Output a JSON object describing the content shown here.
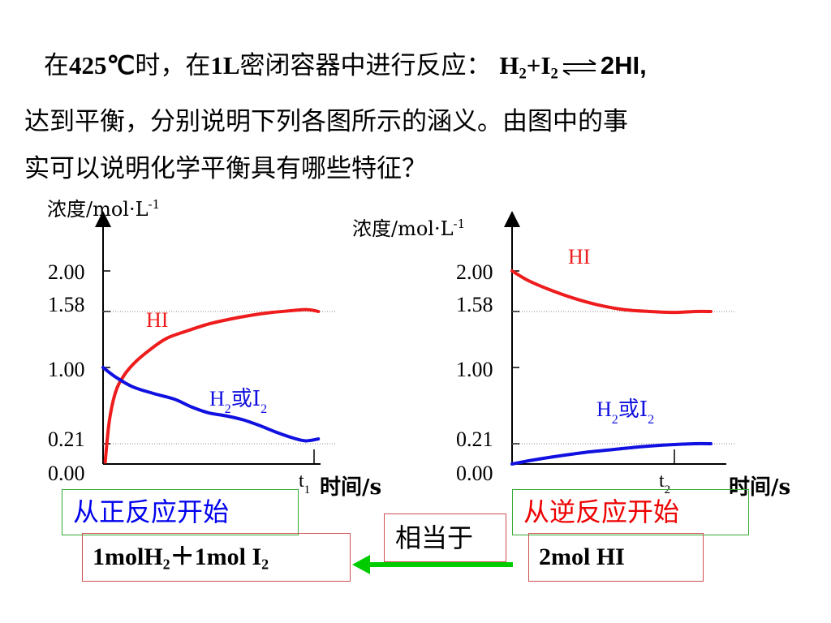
{
  "question": {
    "line1_pre": "在",
    "temp": "425℃",
    "line1_mid": "时，在",
    "vol": "1L",
    "line1_post": "密闭容器中进行反应：",
    "eq_lhs_h": "H",
    "eq_lhs_sub1": "2",
    "eq_lhs_plus_i": "+I",
    "eq_lhs_sub2": "2",
    "eq_rhs": "2HI,",
    "line2": "达到平衡，分别说明下列各图所示的涵义。由图中的事",
    "line3": "实可以说明化学平衡具有哪些特征？"
  },
  "axis_text": {
    "ylabel_main": "浓度/mol·L",
    "ylabel_sup": "-1",
    "xlabel": "时间/s",
    "t1_main": "t",
    "t1_sub": "1",
    "t2_main": "t",
    "t2_sub": "2",
    "hi_label": "HI",
    "h2_main": "H",
    "h2_sub": "2",
    "h2_or": "或I",
    "h2_sub2": "2"
  },
  "colors": {
    "hi": "#ee1c1c",
    "h2_i2": "#1010e0",
    "green_box": "#33aa33",
    "red_box": "#d05050",
    "arrow": "#00cc00"
  },
  "chart_data": [
    {
      "type": "line",
      "title": "从正反应开始",
      "xlabel": "时间/s",
      "ylabel": "浓度/mol·L-1",
      "y_ticks": [
        "2.00",
        "1.58",
        "1.00",
        "0.21",
        "0.00"
      ],
      "y_tick_values": [
        2.0,
        1.58,
        1.0,
        0.21,
        0.0
      ],
      "x_ticks": [
        "t1"
      ],
      "ylim": [
        0,
        2.4
      ],
      "xlim": [
        0,
        1.1
      ],
      "t_marker": 1.0,
      "equilibrium_lines": [
        1.58,
        0.21
      ],
      "series": [
        {
          "name": "HI",
          "color": "#ee1c1c",
          "x": [
            0.01,
            0.03,
            0.06,
            0.1,
            0.15,
            0.22,
            0.3,
            0.4,
            0.5,
            0.6,
            0.7,
            0.8,
            0.9,
            0.96,
            1.0,
            1.02
          ],
          "y": [
            0.02,
            0.45,
            0.75,
            0.92,
            1.05,
            1.18,
            1.3,
            1.38,
            1.45,
            1.5,
            1.54,
            1.57,
            1.59,
            1.6,
            1.59,
            1.58
          ]
        },
        {
          "name": "H2或I2",
          "color": "#1010e0",
          "x": [
            0.0,
            0.06,
            0.14,
            0.24,
            0.34,
            0.42,
            0.5,
            0.58,
            0.66,
            0.74,
            0.82,
            0.9,
            0.96,
            1.02
          ],
          "y": [
            1.0,
            0.9,
            0.8,
            0.73,
            0.67,
            0.59,
            0.53,
            0.5,
            0.46,
            0.4,
            0.33,
            0.27,
            0.24,
            0.26
          ]
        }
      ]
    },
    {
      "type": "line",
      "title": "从逆反应开始",
      "xlabel": "时间/s",
      "ylabel": "浓度/mol·L-1",
      "y_ticks": [
        "2.00",
        "1.58",
        "1.00",
        "0.21",
        "0.00"
      ],
      "y_tick_values": [
        2.0,
        1.58,
        1.0,
        0.21,
        0.0
      ],
      "x_ticks": [
        "t2"
      ],
      "ylim": [
        0,
        2.4
      ],
      "xlim": [
        0,
        1.1
      ],
      "t_marker": 0.8,
      "equilibrium_lines": [
        1.58,
        0.21
      ],
      "series": [
        {
          "name": "HI",
          "color": "#ee1c1c",
          "x": [
            0.0,
            0.08,
            0.18,
            0.3,
            0.42,
            0.55,
            0.68,
            0.8,
            0.9,
            0.98
          ],
          "y": [
            2.0,
            1.9,
            1.81,
            1.72,
            1.65,
            1.6,
            1.58,
            1.57,
            1.58,
            1.58
          ]
        },
        {
          "name": "H2或I2",
          "color": "#1010e0",
          "x": [
            0.0,
            0.1,
            0.22,
            0.36,
            0.5,
            0.64,
            0.78,
            0.9,
            0.98
          ],
          "y": [
            0.0,
            0.04,
            0.08,
            0.12,
            0.15,
            0.18,
            0.2,
            0.21,
            0.21
          ]
        }
      ]
    }
  ],
  "boxes": {
    "start_forward": "从正反应开始",
    "start_reverse": "从逆反应开始",
    "equivalent": "相当于",
    "fwd_main1": "1molH",
    "fwd_sub1": "2",
    "fwd_main2": "＋1mol  I",
    "fwd_sub2": "2",
    "reverse_amount": "2mol  HI"
  }
}
